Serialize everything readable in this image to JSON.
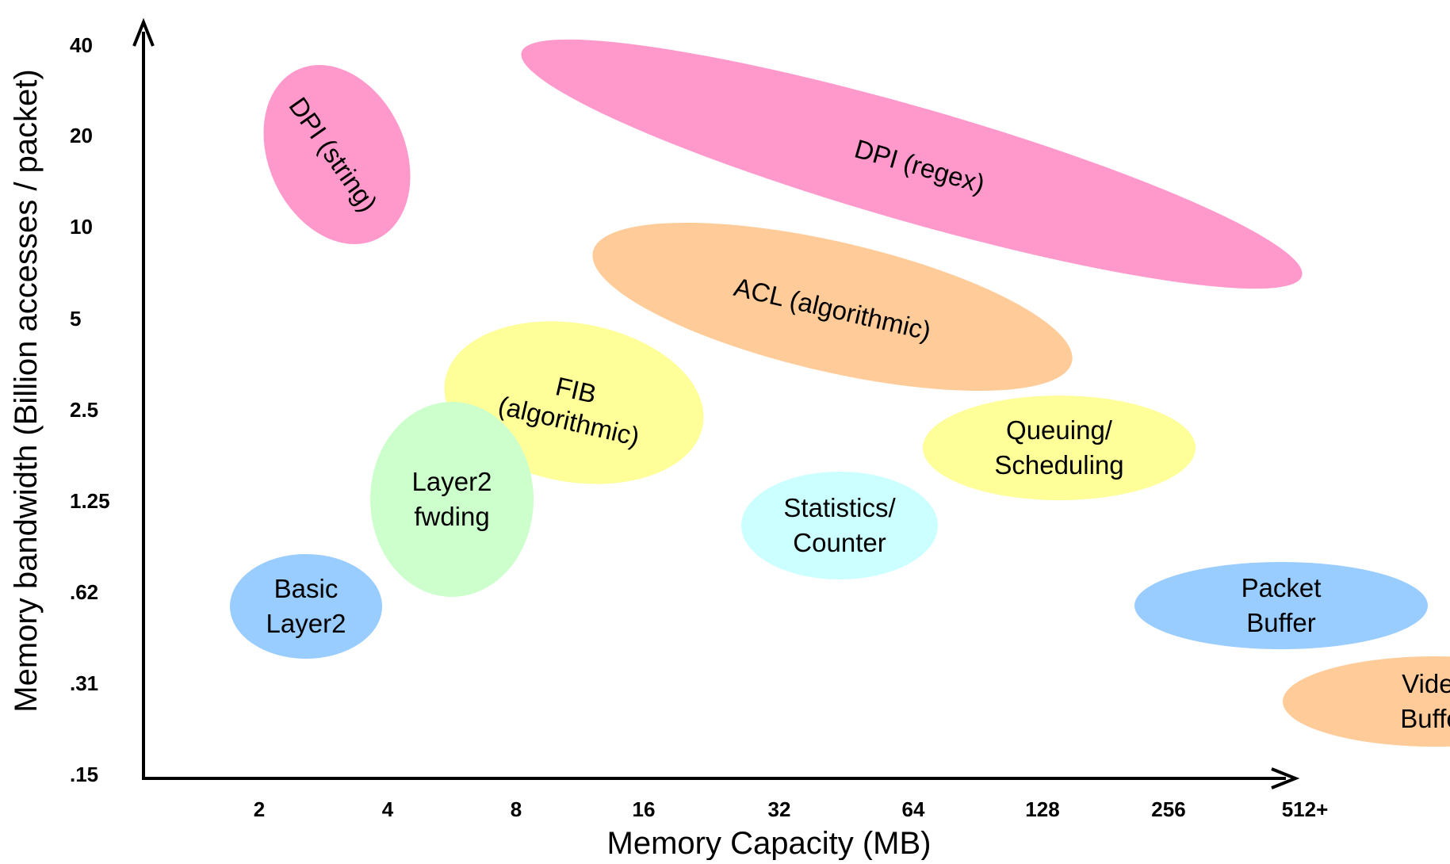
{
  "axes": {
    "x_title": "Memory Capacity (MB)",
    "y_title": "Memory bandwidth (Billion accesses / packet)",
    "x_ticks": [
      "2",
      "4",
      "8",
      "16",
      "32",
      "64",
      "128",
      "256",
      "512+"
    ],
    "y_ticks": [
      "40",
      "20",
      "10",
      "5",
      "2.5",
      "1.25",
      ".62",
      ".31",
      ".15"
    ]
  },
  "regions": [
    {
      "id": "dpi-string",
      "lines": [
        "DPI (string)"
      ],
      "color": "#ff99cc"
    },
    {
      "id": "dpi-regex",
      "lines": [
        "DPI (regex)"
      ],
      "color": "#ff99cc"
    },
    {
      "id": "acl",
      "lines": [
        "ACL (algorithmic)"
      ],
      "color": "#ffcc99"
    },
    {
      "id": "fib",
      "lines": [
        "FIB",
        "(algorithmic)"
      ],
      "color": "#ffff99"
    },
    {
      "id": "layer2-fwding",
      "lines": [
        "Layer2",
        "fwding"
      ],
      "color": "#ccffcc"
    },
    {
      "id": "basic-layer2",
      "lines": [
        "Basic",
        "Layer2"
      ],
      "color": "#99ccff"
    },
    {
      "id": "statistics-counter",
      "lines": [
        "Statistics/",
        "Counter"
      ],
      "color": "#ccffff"
    },
    {
      "id": "queuing-scheduling",
      "lines": [
        "Queuing/",
        "Scheduling"
      ],
      "color": "#ffff99"
    },
    {
      "id": "packet-buffer",
      "lines": [
        "Packet",
        "Buffer"
      ],
      "color": "#99ccff"
    },
    {
      "id": "video-buffer",
      "lines": [
        "Video",
        "Buffer"
      ],
      "color": "#ffcc99"
    }
  ]
}
